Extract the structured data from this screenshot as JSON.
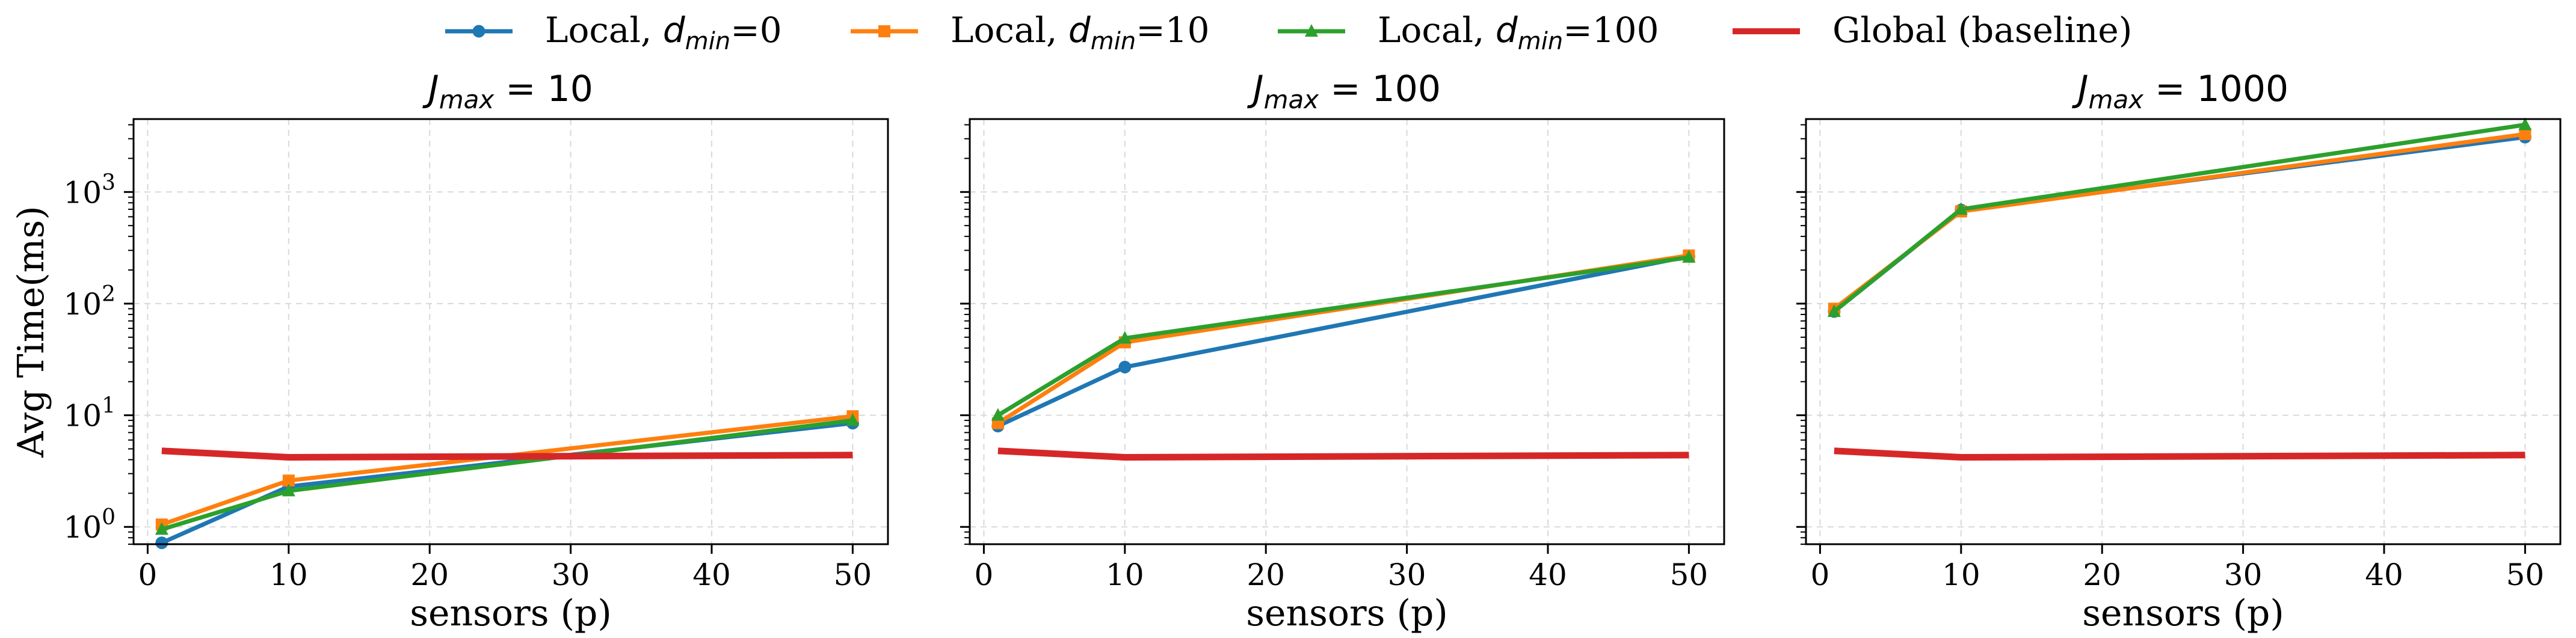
{
  "legend": [
    {
      "label_prefix": "Local, ",
      "label_var": "d",
      "label_sub": "min",
      "label_suffix": "=0",
      "color": "#1f77b4",
      "marker": "circle"
    },
    {
      "label_prefix": "Local, ",
      "label_var": "d",
      "label_sub": "min",
      "label_suffix": "=10",
      "color": "#ff7f0e",
      "marker": "square"
    },
    {
      "label_prefix": "Local, ",
      "label_var": "d",
      "label_sub": "min",
      "label_suffix": "=100",
      "color": "#2ca02c",
      "marker": "triangle"
    },
    {
      "label_prefix": "Global (baseline)",
      "label_var": "",
      "label_sub": "",
      "label_suffix": "",
      "color": "#d62728",
      "marker": "none"
    }
  ],
  "chart_data": [
    {
      "type": "line",
      "title": {
        "var": "J",
        "sub": "max",
        "rest": " = 10"
      },
      "xlabel": "sensors (p)",
      "ylabel": "Avg Time(ms)",
      "yscale": "log",
      "xlim": [
        -1,
        52.5
      ],
      "ylim": [
        0.7,
        4500
      ],
      "xticks": [
        0,
        10,
        20,
        30,
        40,
        50
      ],
      "xtick_labels": [
        "0",
        "10",
        "20",
        "30",
        "40",
        "50"
      ],
      "yticks": [
        1,
        10,
        100,
        1000
      ],
      "ytick_labels": [
        {
          "base": "10",
          "exp": "0"
        },
        {
          "base": "10",
          "exp": "1"
        },
        {
          "base": "10",
          "exp": "2"
        },
        {
          "base": "10",
          "exp": "3"
        }
      ],
      "show_ytick_labels": true,
      "grid": true,
      "x": [
        1,
        10,
        50
      ],
      "series": [
        {
          "name": "Local, d_min=0",
          "values": [
            0.72,
            2.3,
            8.5
          ]
        },
        {
          "name": "Local, d_min=10",
          "values": [
            1.05,
            2.6,
            9.8
          ]
        },
        {
          "name": "Local, d_min=100",
          "values": [
            0.95,
            2.1,
            9.0
          ]
        },
        {
          "name": "Global (baseline)",
          "values": [
            4.8,
            4.2,
            4.4
          ]
        }
      ]
    },
    {
      "type": "line",
      "title": {
        "var": "J",
        "sub": "max",
        "rest": " = 100"
      },
      "xlabel": "sensors (p)",
      "ylabel": "",
      "yscale": "log",
      "xlim": [
        -1,
        52.5
      ],
      "ylim": [
        0.7,
        4500
      ],
      "xticks": [
        0,
        10,
        20,
        30,
        40,
        50
      ],
      "xtick_labels": [
        "0",
        "10",
        "20",
        "30",
        "40",
        "50"
      ],
      "yticks": [
        1,
        10,
        100,
        1000
      ],
      "ytick_labels": [],
      "show_ytick_labels": false,
      "grid": true,
      "x": [
        1,
        10,
        50
      ],
      "series": [
        {
          "name": "Local, d_min=0",
          "values": [
            8.0,
            27,
            265
          ]
        },
        {
          "name": "Local, d_min=10",
          "values": [
            8.5,
            45,
            270
          ]
        },
        {
          "name": "Local, d_min=100",
          "values": [
            10.0,
            49,
            260
          ]
        },
        {
          "name": "Global (baseline)",
          "values": [
            4.8,
            4.2,
            4.4
          ]
        }
      ]
    },
    {
      "type": "line",
      "title": {
        "var": "J",
        "sub": "max",
        "rest": " = 1000"
      },
      "xlabel": "sensors (p)",
      "ylabel": "",
      "yscale": "log",
      "xlim": [
        -1,
        52.5
      ],
      "ylim": [
        0.7,
        4500
      ],
      "xticks": [
        0,
        10,
        20,
        30,
        40,
        50
      ],
      "xtick_labels": [
        "0",
        "10",
        "20",
        "30",
        "40",
        "50"
      ],
      "yticks": [
        1,
        10,
        100,
        1000
      ],
      "ytick_labels": [],
      "show_ytick_labels": false,
      "grid": true,
      "x": [
        1,
        10,
        50
      ],
      "series": [
        {
          "name": "Local, d_min=0",
          "values": [
            85,
            690,
            3100
          ]
        },
        {
          "name": "Local, d_min=10",
          "values": [
            90,
            670,
            3300
          ]
        },
        {
          "name": "Local, d_min=100",
          "values": [
            85,
            700,
            4000
          ]
        },
        {
          "name": "Global (baseline)",
          "values": [
            4.8,
            4.2,
            4.4
          ]
        }
      ]
    }
  ]
}
